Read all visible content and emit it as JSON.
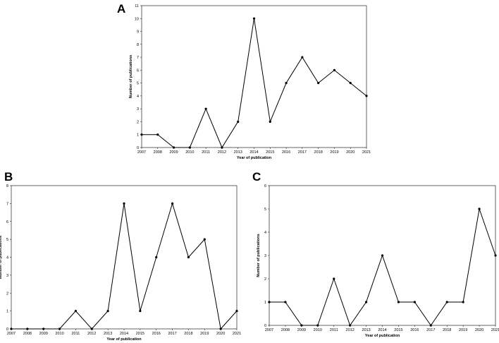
{
  "chart_data": [
    {
      "panel": "A",
      "type": "line",
      "xlabel": "Year of publication",
      "ylabel": "Number of publications",
      "categories": [
        "2007",
        "2008",
        "2009",
        "2010",
        "2011",
        "2012",
        "2013",
        "2014",
        "2015",
        "2016",
        "2017",
        "2018",
        "2019",
        "2020",
        "2021"
      ],
      "values": [
        1,
        1,
        0,
        0,
        3,
        0,
        2,
        10,
        2,
        5,
        7,
        5,
        6,
        5,
        4
      ],
      "ylim": [
        0,
        11
      ],
      "yticks": [
        0,
        1,
        2,
        3,
        4,
        5,
        6,
        7,
        8,
        9,
        10,
        11
      ],
      "grid": false,
      "line_color": "#000000"
    },
    {
      "panel": "B",
      "type": "line",
      "xlabel": "Year of publication",
      "ylabel": "Number of publications",
      "categories": [
        "2007",
        "2008",
        "2009",
        "2010",
        "2011",
        "2012",
        "2013",
        "2014",
        "2015",
        "2016",
        "2017",
        "2018",
        "2019",
        "2020",
        "2021"
      ],
      "values": [
        0,
        0,
        0,
        0,
        1,
        0,
        1,
        7,
        1,
        4,
        7,
        4,
        5,
        0,
        1
      ],
      "ylim": [
        0,
        8
      ],
      "yticks": [
        0,
        1,
        2,
        3,
        4,
        5,
        6,
        7,
        8
      ],
      "grid": false,
      "line_color": "#000000"
    },
    {
      "panel": "C",
      "type": "line",
      "xlabel": "Year of publication",
      "ylabel": "Number of publications",
      "categories": [
        "2007",
        "2008",
        "2009",
        "2010",
        "2011",
        "2012",
        "2013",
        "2014",
        "2015",
        "2016",
        "2017",
        "2018",
        "2019",
        "2020",
        "2021"
      ],
      "values": [
        1,
        1,
        0,
        0,
        2,
        0,
        1,
        3,
        1,
        1,
        0,
        1,
        1,
        5,
        3
      ],
      "ylim": [
        0,
        6
      ],
      "yticks": [
        0,
        1,
        2,
        3,
        4,
        5,
        6
      ],
      "grid": false,
      "line_color": "#000000"
    }
  ]
}
